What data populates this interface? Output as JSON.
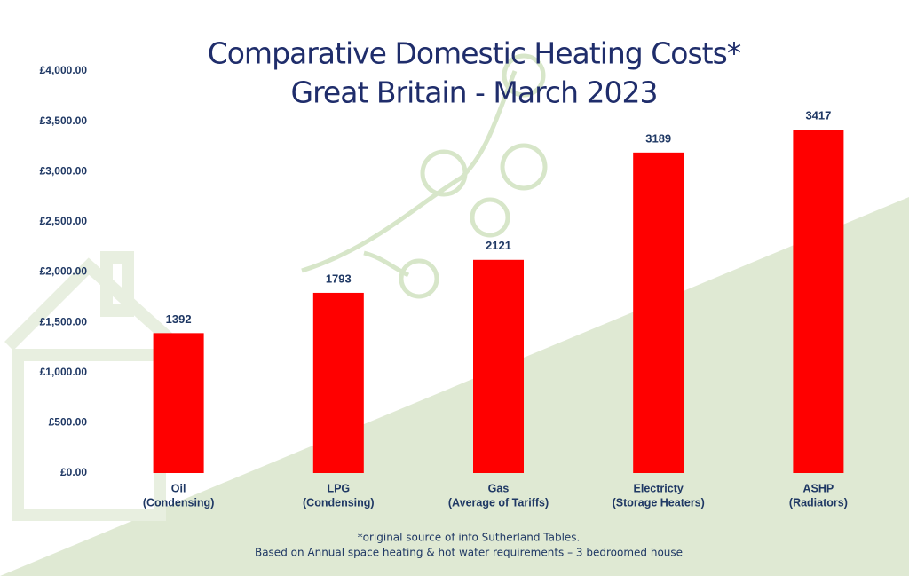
{
  "chart_data": {
    "type": "bar",
    "title": "Comparative Domestic Heating Costs*",
    "subtitle": "Great Britain -  March 2023",
    "categories": [
      [
        "Oil",
        "(Condensing)"
      ],
      [
        "LPG",
        "(Condensing)"
      ],
      [
        "Gas",
        "(Average of Tariffs)"
      ],
      [
        "Electricty",
        "(Storage Heaters)"
      ],
      [
        "ASHP",
        "(Radiators)"
      ]
    ],
    "values": [
      1392,
      1793,
      2121,
      3189,
      3417
    ],
    "color": "#ff0000",
    "ylim": [
      0,
      4000
    ],
    "yticks": [
      {
        "value": 0,
        "label": "£0.00"
      },
      {
        "value": 500,
        "label": "£500.00"
      },
      {
        "value": 1000,
        "label": "£1,000.00"
      },
      {
        "value": 1500,
        "label": "£1,500.00"
      },
      {
        "value": 2000,
        "label": "£2,000.00"
      },
      {
        "value": 2500,
        "label": "£2,500.00"
      },
      {
        "value": 3000,
        "label": "£3,000.00"
      },
      {
        "value": 3500,
        "label": "£3,500.00"
      },
      {
        "value": 4000,
        "label": "£4,000.00"
      }
    ],
    "grid": false,
    "notes": [
      "*original source of info Sutherland Tables.",
      "Based on Annual space heating & hot water requirements – 3 bedroomed house"
    ]
  }
}
